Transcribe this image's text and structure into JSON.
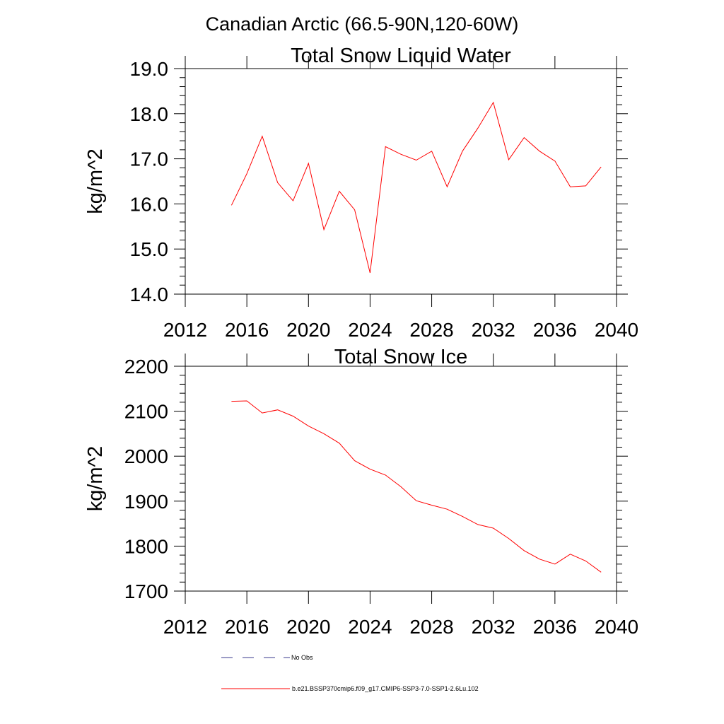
{
  "figure_title": "Canadian Arctic (66.5-90N,120-60W)",
  "chart_data": [
    {
      "type": "line",
      "title": "Total Snow Liquid Water",
      "xlabel": "",
      "ylabel": "kg/m^2",
      "xlim": [
        2012,
        2040
      ],
      "ylim": [
        14.0,
        19.0
      ],
      "x_ticks": [
        2012,
        2016,
        2020,
        2024,
        2028,
        2032,
        2036,
        2040
      ],
      "y_ticks": [
        "14.0",
        "15.0",
        "16.0",
        "17.0",
        "18.0",
        "19.0"
      ],
      "grid": false,
      "series": [
        {
          "name": "b.e21.BSSP370cmip6.f09_g17.CMIP6-SSP3-7.0-SSP1-2.6Lu.102",
          "color": "#ff0000",
          "x": [
            2015,
            2016,
            2017,
            2018,
            2019,
            2020,
            2021,
            2022,
            2023,
            2024,
            2025,
            2026,
            2027,
            2028,
            2029,
            2030,
            2031,
            2032,
            2033,
            2034,
            2035,
            2036,
            2037,
            2038,
            2039
          ],
          "y": [
            15.97,
            16.67,
            17.5,
            16.47,
            16.07,
            16.9,
            15.43,
            16.28,
            15.87,
            14.47,
            17.27,
            17.1,
            16.97,
            17.17,
            16.38,
            17.17,
            17.68,
            18.25,
            16.98,
            17.47,
            17.17,
            16.95,
            16.38,
            16.4,
            16.82
          ]
        }
      ]
    },
    {
      "type": "line",
      "title": "Total Snow Ice",
      "xlabel": "",
      "ylabel": "kg/m^2",
      "xlim": [
        2012,
        2040
      ],
      "ylim": [
        1700,
        2200
      ],
      "x_ticks": [
        2012,
        2016,
        2020,
        2024,
        2028,
        2032,
        2036,
        2040
      ],
      "y_ticks": [
        "1700",
        "1800",
        "1900",
        "2000",
        "2100",
        "2200"
      ],
      "grid": false,
      "series": [
        {
          "name": "b.e21.BSSP370cmip6.f09_g17.CMIP6-SSP3-7.0-SSP1-2.6Lu.102",
          "color": "#ff0000",
          "x": [
            2015,
            2016,
            2017,
            2018,
            2019,
            2020,
            2021,
            2022,
            2023,
            2024,
            2025,
            2026,
            2027,
            2028,
            2029,
            2030,
            2031,
            2032,
            2033,
            2034,
            2035,
            2036,
            2037,
            2038,
            2039
          ],
          "y": [
            2122,
            2123,
            2096,
            2103,
            2089,
            2067,
            2050,
            2029,
            1990,
            1971,
            1958,
            1932,
            1901,
            1891,
            1882,
            1866,
            1848,
            1840,
            1817,
            1790,
            1771,
            1760,
            1782,
            1767,
            1742
          ]
        }
      ]
    }
  ],
  "legend": {
    "placement": "bottom",
    "entries": [
      {
        "label": "No Obs",
        "color": "#3a3a8c",
        "style": "dashed"
      },
      {
        "label": "b.e21.BSSP370cmip6.f09_g17.CMIP6-SSP3-7.0-SSP1-2.6Lu.102",
        "color": "#ff0000",
        "style": "solid"
      }
    ]
  }
}
